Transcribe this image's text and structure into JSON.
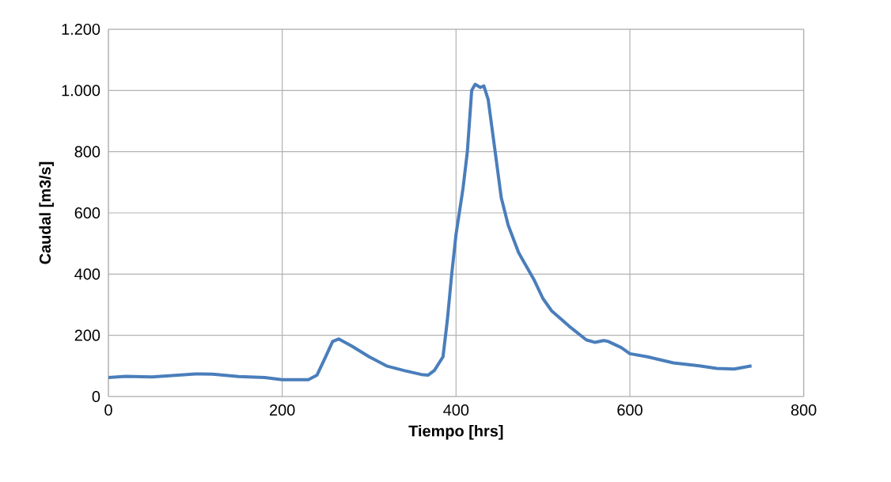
{
  "chart_data": {
    "type": "line",
    "xlabel": "Tiempo [hrs]",
    "ylabel": "Caudal [m3/s]",
    "xlim": [
      0,
      800
    ],
    "xticks": [
      0,
      200,
      400,
      600,
      800
    ],
    "ylim": [
      0,
      1200
    ],
    "yticks": [
      0,
      200,
      400,
      600,
      800,
      {
        "value": 1000,
        "label": "1.000"
      },
      {
        "value": 1200,
        "label": "1.200"
      }
    ],
    "grid": true,
    "marker": "none",
    "line_style": "solid",
    "series": [
      {
        "color": "#4a7ebb",
        "x": [
          0,
          20,
          50,
          80,
          100,
          120,
          150,
          180,
          200,
          230,
          240,
          250,
          258,
          265,
          280,
          300,
          320,
          340,
          360,
          368,
          375,
          385,
          390,
          395,
          400,
          408,
          413,
          418,
          422,
          428,
          432,
          437,
          445,
          452,
          460,
          472,
          480,
          490,
          500,
          510,
          530,
          550,
          560,
          570,
          575,
          590,
          600,
          620,
          650,
          680,
          700,
          720,
          740
        ],
        "values": [
          62,
          66,
          64,
          70,
          74,
          73,
          65,
          62,
          55,
          55,
          70,
          130,
          180,
          188,
          165,
          130,
          100,
          85,
          72,
          70,
          85,
          130,
          250,
          400,
          530,
          680,
          800,
          1000,
          1020,
          1010,
          1015,
          970,
          800,
          650,
          560,
          470,
          430,
          380,
          320,
          280,
          230,
          185,
          177,
          183,
          180,
          160,
          140,
          130,
          110,
          100,
          92,
          90,
          100
        ]
      }
    ]
  }
}
